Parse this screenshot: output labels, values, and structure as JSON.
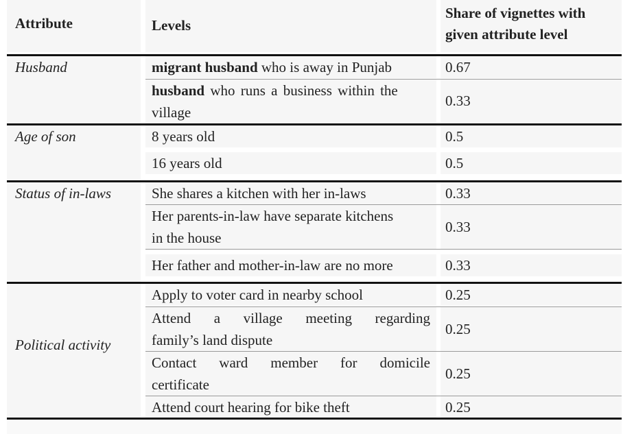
{
  "header": {
    "attribute": "Attribute",
    "levels": "Levels",
    "share_line1": "Share of vignettes with",
    "share_line2": "given attribute level"
  },
  "groups": [
    {
      "attribute": "Husband",
      "rows": [
        {
          "bold": "migrant husband",
          "rest": " who is away in Punjab",
          "share": "0.67"
        },
        {
          "bold": "husband",
          "rest": " who runs a business within the",
          "rest2": "village",
          "share": "0.33"
        }
      ]
    },
    {
      "attribute": "Age of son",
      "rows": [
        {
          "text": "8 years old",
          "share": "0.5"
        },
        {
          "text": "16 years old",
          "share": "0.5"
        }
      ]
    },
    {
      "attribute": "Status of in-laws",
      "rows": [
        {
          "text": "She shares a kitchen with her in-laws",
          "share": "0.33"
        },
        {
          "line1": "Her parents-in-law have separate kitchens",
          "line2": "in the house",
          "share": "0.33"
        },
        {
          "text": "Her father and mother-in-law are no more",
          "share": "0.33"
        }
      ]
    },
    {
      "attribute": "Political activity",
      "rows": [
        {
          "text": "Apply to voter card in nearby school",
          "share": "0.25"
        },
        {
          "line1": "Attend a village meeting regarding",
          "line2": "family’s land dispute",
          "share": "0.25"
        },
        {
          "line1": "Contact ward member for domicile",
          "line2": "certificate",
          "share": "0.25"
        },
        {
          "text": "Attend court hearing for bike theft",
          "share": "0.25"
        }
      ]
    }
  ]
}
